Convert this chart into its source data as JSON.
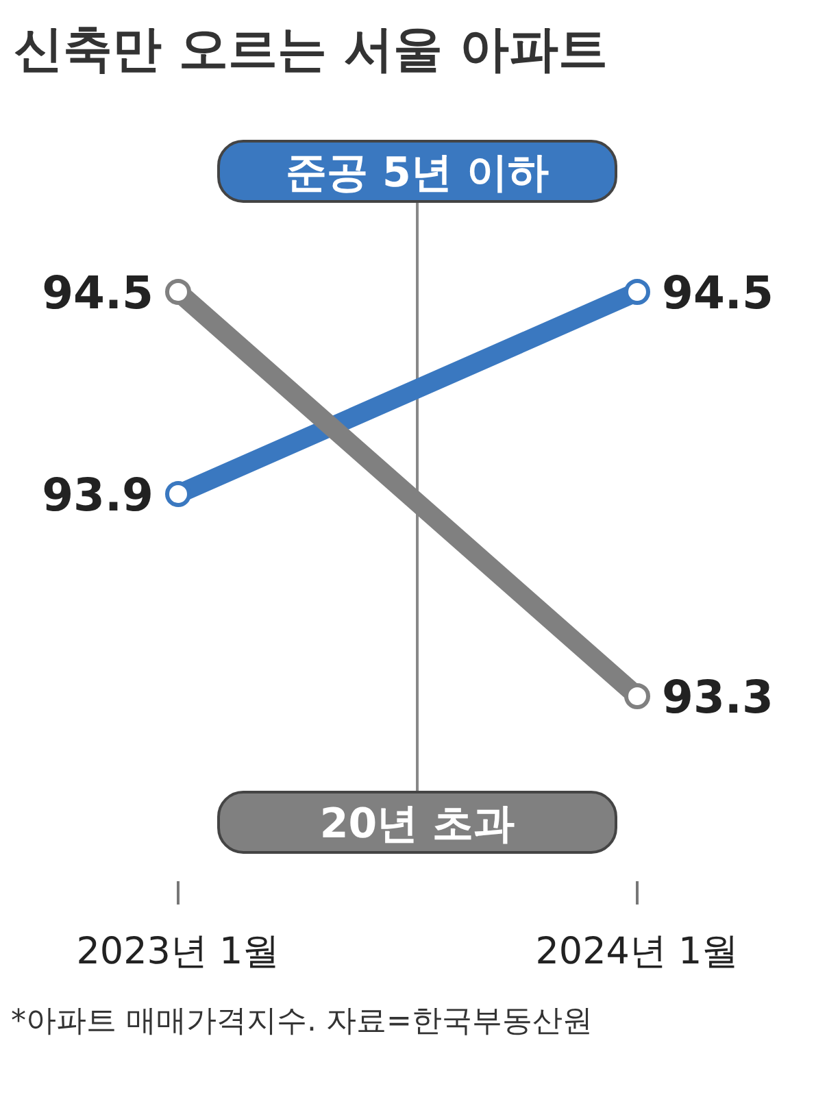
{
  "chart_data": {
    "type": "line",
    "title": "신축만 오르는 서울 아파트",
    "categories": [
      "2023년 1월",
      "2024년 1월"
    ],
    "series": [
      {
        "name": "준공 5년 이하",
        "color": "#3a78c0",
        "values": [
          93.9,
          94.5
        ]
      },
      {
        "name": "20년 초과",
        "color": "#808080",
        "values": [
          94.5,
          93.3
        ]
      }
    ],
    "data_labels": true,
    "marker": "circle",
    "line_style": "solid",
    "annotations": [
      "*아파트 매매가격지수. 자료=한국부동산원"
    ]
  }
}
